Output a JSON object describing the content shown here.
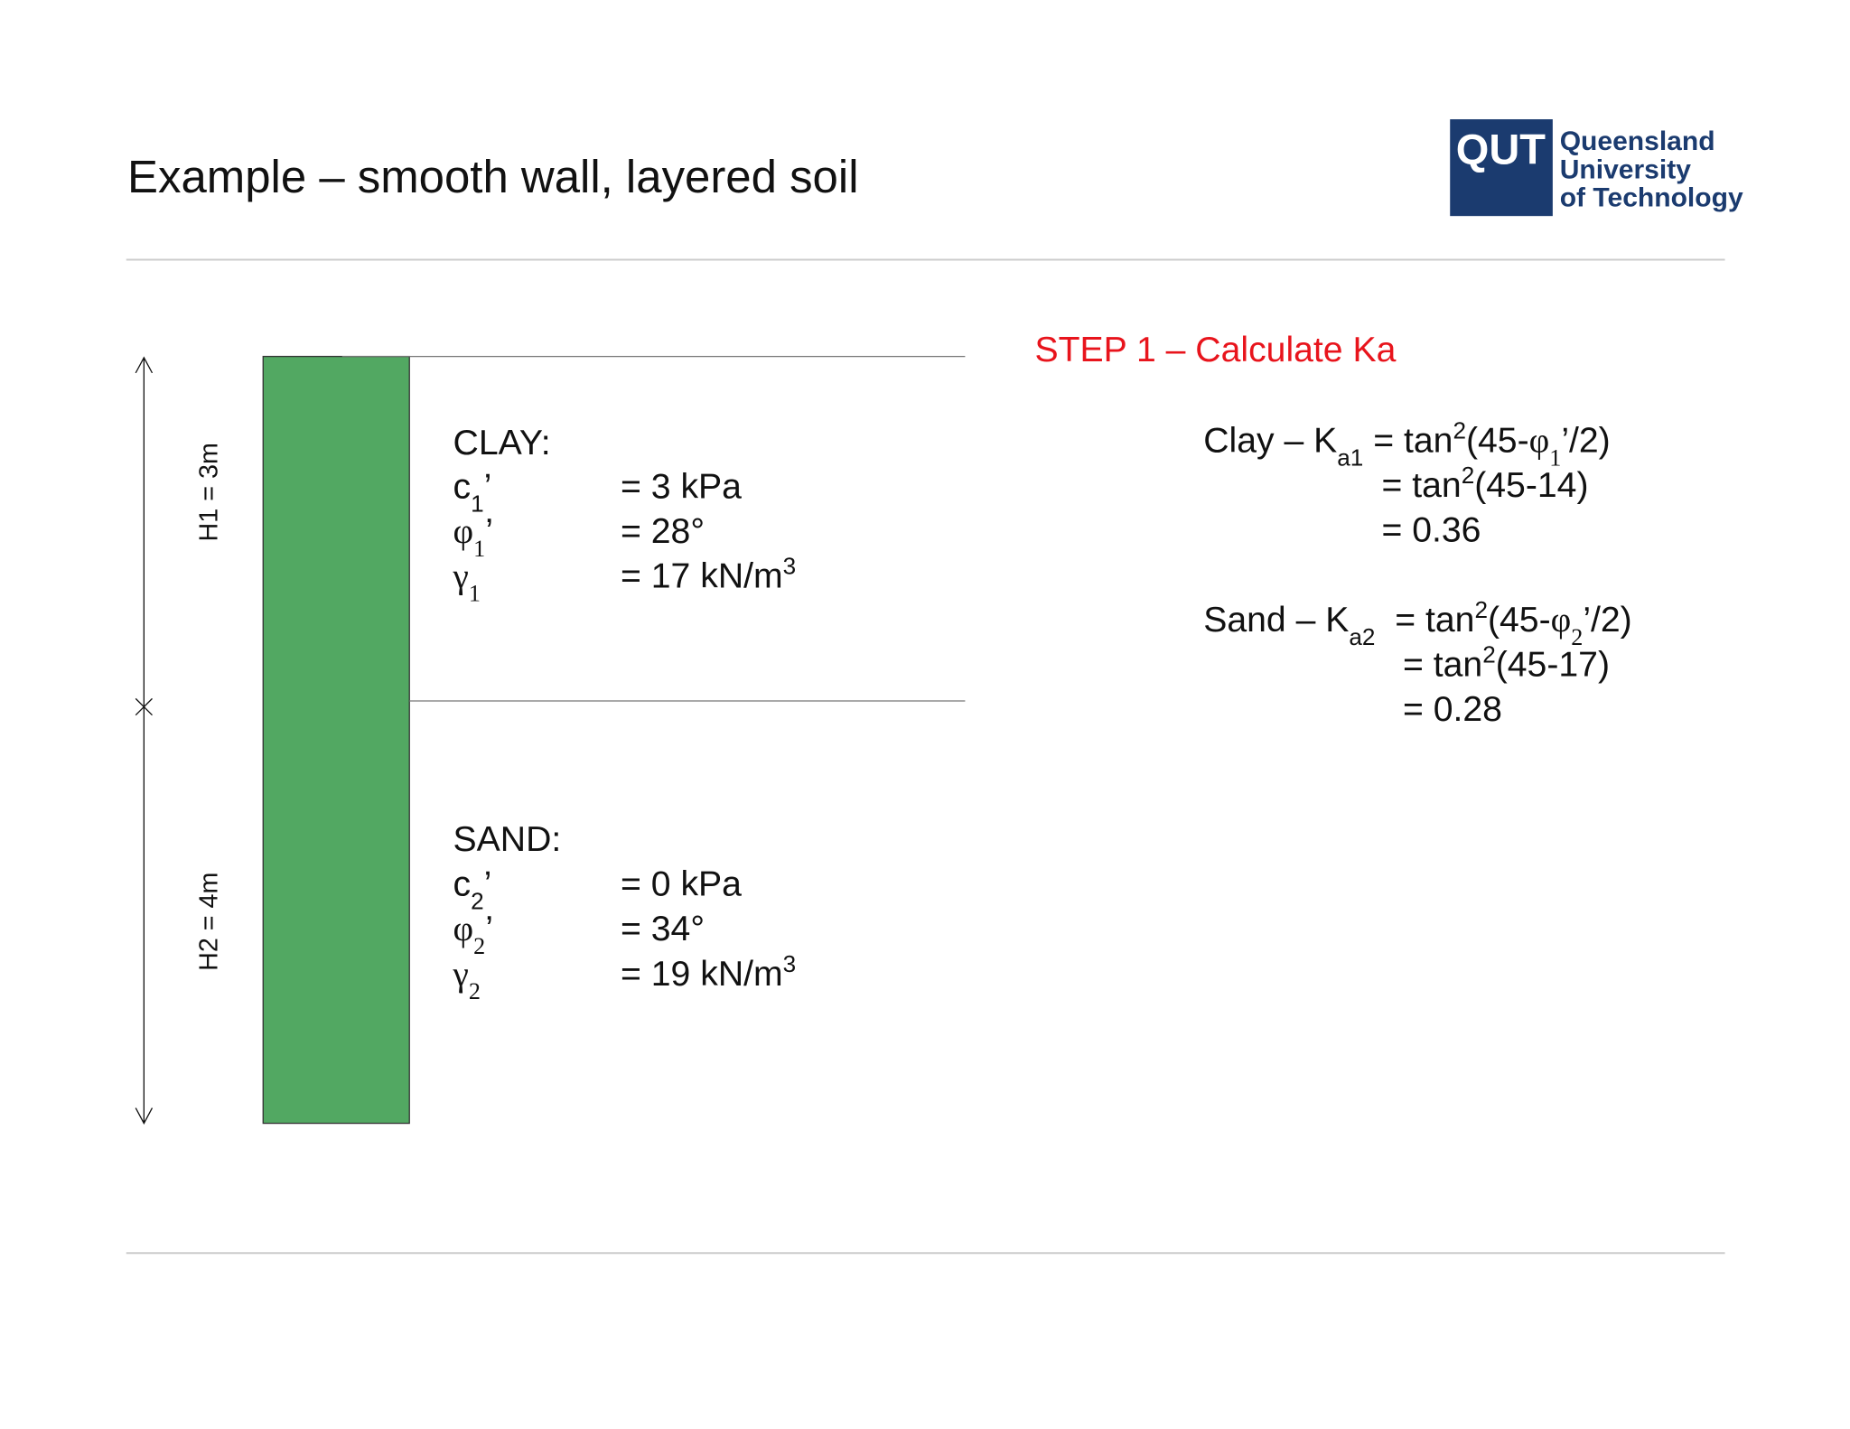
{
  "header": {
    "title": "Example – smooth wall, layered soil"
  },
  "logo": {
    "mark": "QUT",
    "lines": [
      "Queensland",
      "University",
      "of Technology"
    ]
  },
  "diagram": {
    "h1": "H1 = 3m",
    "h2": "H2 = 4m"
  },
  "clay": {
    "name": "CLAY:",
    "rows": [
      {
        "symbol": [
          "c",
          "1",
          "’"
        ],
        "value": [
          "= 3 kPa"
        ]
      },
      {
        "symbol": [
          "φ",
          "1",
          "’"
        ],
        "value": [
          "= 28°"
        ]
      },
      {
        "symbol": [
          "γ",
          "1"
        ],
        "value": [
          "= 17 kN/m",
          "3"
        ]
      }
    ]
  },
  "sand": {
    "name": "SAND:",
    "rows": [
      {
        "symbol": [
          "c",
          "2",
          "’"
        ],
        "value": [
          "= 0 kPa"
        ]
      },
      {
        "symbol": [
          "φ",
          "2",
          "’"
        ],
        "value": [
          "= 34°"
        ]
      },
      {
        "symbol": [
          "γ",
          "2"
        ],
        "value": [
          "= 19 kN/m",
          "3"
        ]
      }
    ]
  },
  "step": {
    "title": "STEP 1 – Calculate Ka"
  },
  "equations": {
    "clay": [
      [
        "Clay – K",
        "a1",
        " = tan",
        "2",
        "(45-",
        "φ",
        "1",
        "’/2)"
      ],
      [
        "= tan",
        "2",
        "(45-14)"
      ],
      [
        "= 0.36"
      ]
    ],
    "sand": [
      [
        "Sand – K",
        "a2",
        "  = tan",
        "2",
        "(45-",
        "φ",
        "2",
        "’/2)"
      ],
      [
        "= tan",
        "2",
        "(45-17)"
      ],
      [
        "= 0.28"
      ]
    ]
  }
}
